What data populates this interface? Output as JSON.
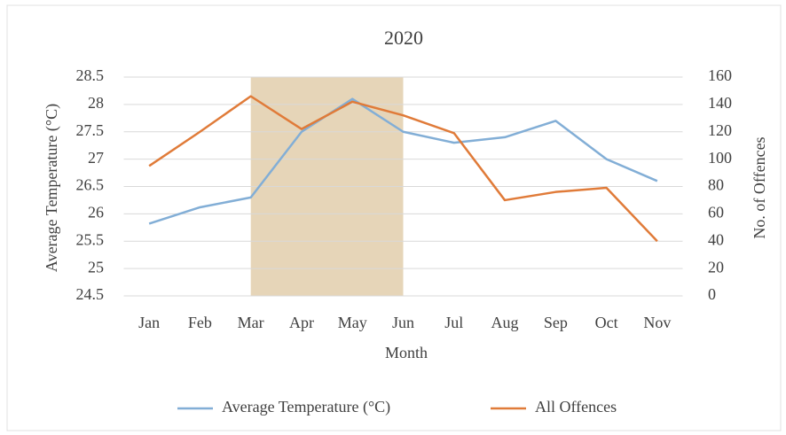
{
  "chart_data": {
    "type": "line",
    "title": "2020",
    "categories": [
      "Jan",
      "Feb",
      "Mar",
      "Apr",
      "May",
      "Jun",
      "Jul",
      "Aug",
      "Sep",
      "Oct",
      "Nov"
    ],
    "xlabel": "Month",
    "ylabel": "Average Temperature (°C)",
    "y2label": "No. of Offences",
    "series": [
      {
        "name": "Average Temperature (°C)",
        "color": "#82aed6",
        "values": [
          25.82,
          26.12,
          26.3,
          27.5,
          28.1,
          27.5,
          27.3,
          27.4,
          27.7,
          27.0,
          26.6
        ]
      },
      {
        "name": "All Offences",
        "color": "#e07b39",
        "axis": "y2",
        "values": [
          95,
          120,
          146,
          122,
          142,
          132,
          119,
          70,
          76,
          79,
          40
        ]
      }
    ],
    "ylim": [
      24.5,
      28.5
    ],
    "yticks": [
      24.5,
      25,
      25.5,
      26,
      26.5,
      27,
      27.5,
      28,
      28.5
    ],
    "y2lim": [
      0,
      160
    ],
    "y2ticks": [
      0,
      20,
      40,
      60,
      80,
      100,
      120,
      140,
      160
    ],
    "grid": true,
    "legend": "bottom",
    "highlight": {
      "from": "Mar",
      "to": "Jun",
      "color": "#e6d5b8"
    }
  }
}
